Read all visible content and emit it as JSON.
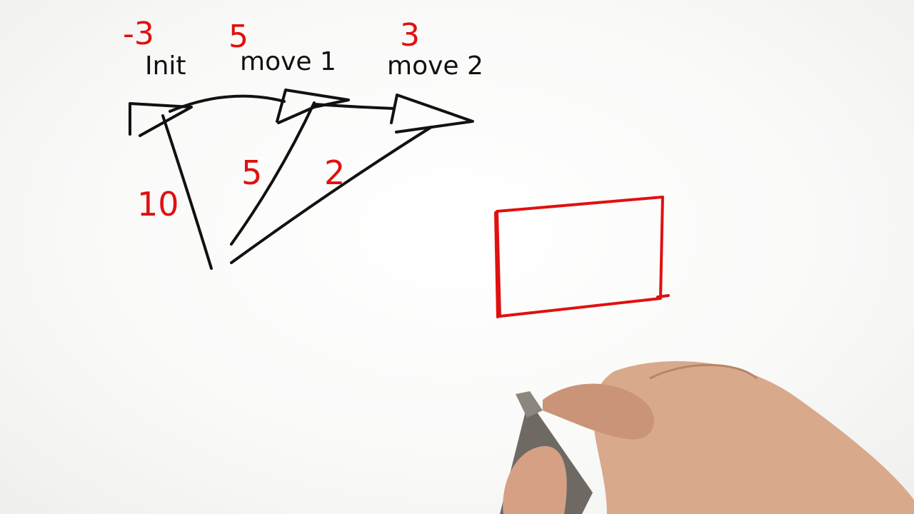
{
  "diagram": {
    "nodes": [
      {
        "id": "init",
        "label": "Init",
        "value": "-3"
      },
      {
        "id": "move1",
        "label": "move 1",
        "value": "5"
      },
      {
        "id": "move2",
        "label": "move 2",
        "value": "3"
      }
    ],
    "edges": [
      {
        "from": "init",
        "value": "10"
      },
      {
        "from": "move1",
        "value": "5"
      },
      {
        "from": "move2",
        "value": "2"
      }
    ]
  },
  "colors": {
    "black_ink": "#111111",
    "red_ink": "#e01010",
    "board": "#ffffff"
  }
}
